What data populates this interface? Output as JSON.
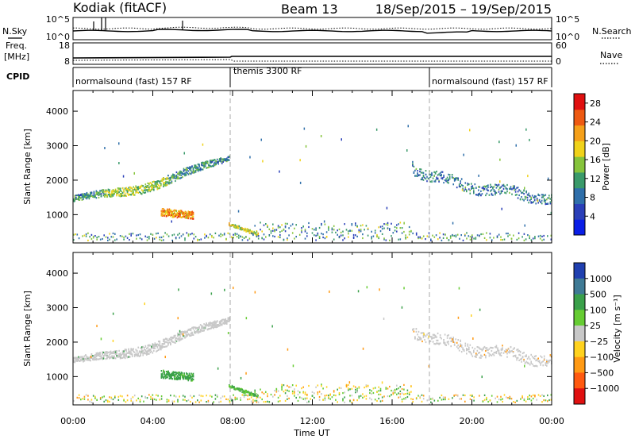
{
  "header": {
    "radar_title": "Kodiak (fitACF)",
    "beam": "Beam 13",
    "date_range": "18/Sep/2015 – 19/Sep/2015"
  },
  "summary_panels": {
    "nsky_label": "N.Sky",
    "nsearch_label": "N.Search",
    "nsky_ticks": [
      "10^5",
      "10^0"
    ],
    "nsearch_ticks": [
      "10^5",
      "10^0"
    ],
    "freq_label_1": "Freq.",
    "freq_label_2": "[MHz]",
    "freq_ticks": [
      "18",
      "8"
    ],
    "nave_label": "Nave",
    "nave_ticks": [
      "60",
      "0"
    ],
    "cpid_label": "CPID",
    "cpid_segments": [
      {
        "label": "normalsound (fast) 157 RF",
        "start_hour": 0,
        "end_hour": 8
      },
      {
        "label": "themis 3300 RF",
        "start_hour": 8,
        "end_hour": 18
      },
      {
        "label": "normalsound (fast) 157 RF",
        "start_hour": 18,
        "end_hour": 24
      }
    ]
  },
  "chart_data": [
    {
      "type": "heatmap",
      "ylabel": "Slant Range [km]",
      "y_ticks": [
        1000,
        2000,
        3000,
        4000
      ],
      "ylim": [
        180,
        4600
      ],
      "x_ticks": [
        "00:00",
        "04:00",
        "08:00",
        "12:00",
        "16:00",
        "20:00",
        "00:00"
      ],
      "xlim_hours": [
        0,
        24
      ],
      "colorbar": {
        "label": "Power [dB]",
        "ticks": [
          4,
          8,
          12,
          16,
          20,
          24,
          28
        ],
        "range": [
          0,
          30
        ],
        "colors": [
          "#0a1ee6",
          "#2a3fb8",
          "#2f6faa",
          "#3a9a6a",
          "#86c43c",
          "#f0d21a",
          "#f5a01a",
          "#ee5a12",
          "#e01010"
        ]
      },
      "features": [
        {
          "name": "morning band",
          "start_hour": 0,
          "end_hour": 7.8,
          "range_start_km": 1450,
          "range_end_km": 2650,
          "mean_value": 12
        },
        {
          "name": "power peak",
          "start_hour": 4.4,
          "end_hour": 6,
          "range_start_km": 1000,
          "range_end_km": 1150,
          "mean_value": 27
        },
        {
          "name": "descending trace",
          "start_hour": 7.8,
          "end_hour": 9.3,
          "range_start_km": 700,
          "range_end_km": 400,
          "mean_value": 18
        },
        {
          "name": "evening band",
          "start_hour": 17,
          "end_hour": 24,
          "range_start_km": 2450,
          "range_end_km": 1450,
          "mean_value": 10
        }
      ]
    },
    {
      "type": "heatmap",
      "ylabel": "Slant Range [km]",
      "y_ticks": [
        1000,
        2000,
        3000,
        4000
      ],
      "ylim": [
        180,
        4600
      ],
      "x_ticks": [
        "00:00",
        "04:00",
        "08:00",
        "12:00",
        "16:00",
        "20:00",
        "00:00"
      ],
      "xlabel": "Time UT",
      "xlim_hours": [
        0,
        24
      ],
      "colorbar": {
        "label": "Velocity [m s⁻¹]",
        "ticks": [
          "1000",
          "500",
          "100",
          "25",
          "−25",
          "−100",
          "−500",
          "−1000"
        ],
        "colors": [
          "#2040b0",
          "#3f7a95",
          "#3aa04a",
          "#66cc33",
          "#c8c8c8",
          "#ffd21e",
          "#ff9a14",
          "#ff5a10",
          "#e01010"
        ]
      },
      "features": [
        {
          "name": "morning band",
          "start_hour": 0,
          "end_hour": 7.8,
          "range_start_km": 1450,
          "range_end_km": 2650,
          "mean_value": 0
        },
        {
          "name": "green patch",
          "start_hour": 4.4,
          "end_hour": 6,
          "range_start_km": 1000,
          "range_end_km": 1150,
          "mean_value": 150
        },
        {
          "name": "descending trace",
          "start_hour": 7.8,
          "end_hour": 9.3,
          "range_start_km": 700,
          "range_end_km": 400,
          "mean_value": 100
        },
        {
          "name": "evening band",
          "start_hour": 17,
          "end_hour": 24,
          "range_start_km": 2450,
          "range_end_km": 1450,
          "mean_value": 0
        }
      ]
    }
  ]
}
